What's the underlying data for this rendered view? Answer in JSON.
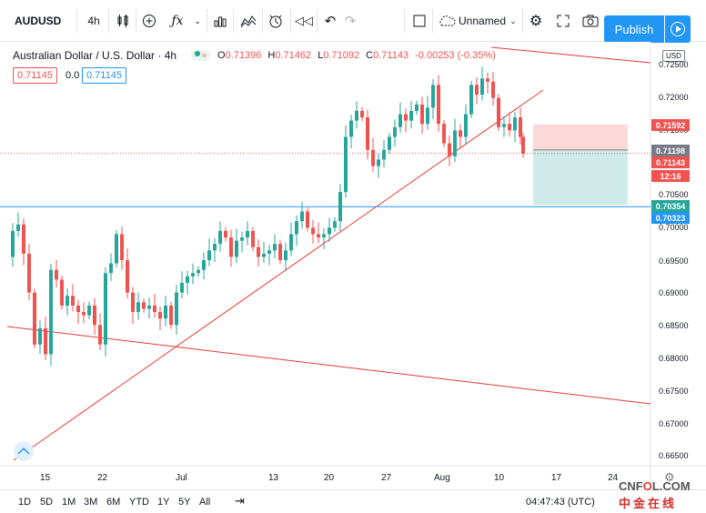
{
  "toolbar": {
    "symbol": "AUDUSD",
    "interval": "4h",
    "layout_name": "Unnamed",
    "publish_label": "Publish"
  },
  "legend": {
    "title": "Australian Dollar / U.S. Dollar · 4h",
    "open_label": "O",
    "open": "0.71396",
    "high_label": "H",
    "high": "0.71462",
    "low_label": "L",
    "low": "0.71092",
    "close_label": "C",
    "close": "0.71143",
    "change": "-0.00253 (-0.35%)"
  },
  "trade": {
    "sell": "0.71145",
    "spread": "0.0",
    "buy": "0.71145"
  },
  "price_axis": {
    "currency": "USD",
    "labels": [
      "0.72500",
      "0.72000",
      "0.71500",
      "0.70500",
      "0.70000",
      "0.69500",
      "0.69000",
      "0.68500",
      "0.68000",
      "0.67500",
      "0.67000",
      "0.66500"
    ],
    "tags": [
      {
        "text": "0.71592",
        "color": "#ef5350"
      },
      {
        "text": "0.71198",
        "color": "#787b86"
      },
      {
        "text": "0.71143",
        "color": "#ef5350"
      },
      {
        "text": "12:16",
        "color": "#ef5350"
      },
      {
        "text": "0.70354",
        "color": "#26a69a"
      },
      {
        "text": "0.70323",
        "color": "#2196f3"
      }
    ]
  },
  "time_axis": [
    "15",
    "22",
    "Jul",
    "13",
    "20",
    "27",
    "Aug",
    "10",
    "17",
    "24"
  ],
  "ranges": [
    "1D",
    "5D",
    "1M",
    "3M",
    "6M",
    "YTD",
    "1Y",
    "5Y",
    "All"
  ],
  "clock": "04:47:43 (UTC)",
  "watermark": {
    "latin_a": "CNF",
    "latin_o": "O",
    "latin_b": "L.COM",
    "cn": "中金在线"
  },
  "colors": {
    "up": "#26a69a",
    "down": "#ef5350",
    "accent": "#2196f3",
    "trend": "#e53935"
  },
  "icons": [
    "candles-icon",
    "add-indicator-icon",
    "fx-icon",
    "bar-chart-icon",
    "compare-icon",
    "alert-icon",
    "replay-icon",
    "undo-icon",
    "redo-icon",
    "cloud-icon",
    "gear-icon",
    "fullscreen-icon",
    "camera-icon",
    "play-icon"
  ]
}
